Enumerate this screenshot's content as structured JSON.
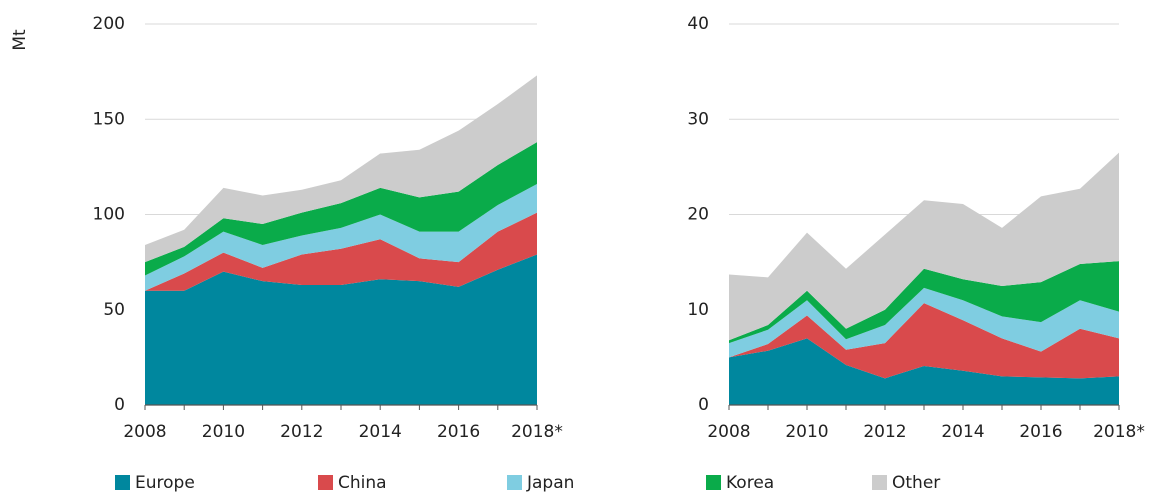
{
  "chart_data": [
    {
      "type": "stacked-area",
      "y_label": "Mt",
      "categories": [
        "2008",
        null,
        "2010",
        null,
        "2012",
        null,
        "2014",
        null,
        "2016",
        null,
        "2018*"
      ],
      "ylim": [
        0,
        200
      ],
      "yticks": [
        0,
        50,
        100,
        150,
        200
      ],
      "grid": true,
      "series": [
        {
          "name": "Europe",
          "color": "#00879e",
          "values": [
            60,
            60,
            70,
            65,
            63,
            63,
            66,
            65,
            62,
            71,
            79
          ]
        },
        {
          "name": "China",
          "color": "#d94a4c",
          "values": [
            0,
            9,
            10,
            7,
            16,
            19,
            21,
            12,
            13,
            20,
            22
          ]
        },
        {
          "name": "Japan",
          "color": "#7fcde1",
          "values": [
            8,
            9,
            11,
            12,
            10,
            11,
            13,
            14,
            16,
            14,
            15
          ]
        },
        {
          "name": "Korea",
          "color": "#0aab4a",
          "values": [
            7,
            5,
            7,
            11,
            12,
            13,
            14,
            18,
            21,
            21,
            22
          ]
        },
        {
          "name": "Other",
          "color": "#cccccc",
          "values": [
            9,
            9,
            16,
            15,
            12,
            12,
            18,
            25,
            32,
            32,
            35
          ]
        }
      ]
    },
    {
      "type": "stacked-area",
      "categories": [
        "2008",
        null,
        "2010",
        null,
        "2012",
        null,
        "2014",
        null,
        "2016",
        null,
        "2018*"
      ],
      "ylim": [
        0,
        40
      ],
      "yticks": [
        0,
        10,
        20,
        30,
        40
      ],
      "grid": true,
      "series": [
        {
          "name": "Europe",
          "color": "#00879e",
          "values": [
            5,
            5.7,
            7,
            4.2,
            2.8,
            4.1,
            3.6,
            3.0,
            2.9,
            2.8,
            3.0
          ]
        },
        {
          "name": "China",
          "color": "#d94a4c",
          "values": [
            0,
            0.7,
            2.4,
            1.6,
            3.7,
            6.6,
            5.3,
            4.0,
            2.7,
            5.2,
            4.0
          ]
        },
        {
          "name": "Japan",
          "color": "#7fcde1",
          "values": [
            1.5,
            1.5,
            1.6,
            1.1,
            1.9,
            1.6,
            2.1,
            2.3,
            3.1,
            3.0,
            2.8
          ]
        },
        {
          "name": "Korea",
          "color": "#0aab4a",
          "values": [
            0.3,
            0.5,
            1.0,
            1.1,
            1.6,
            2.0,
            2.2,
            3.2,
            4.2,
            3.8,
            5.3
          ]
        },
        {
          "name": "Other",
          "color": "#cccccc",
          "values": [
            6.9,
            5.0,
            6.1,
            6.3,
            7.9,
            7.2,
            7.9,
            6.1,
            9.0,
            7.9,
            11.4
          ]
        }
      ]
    }
  ]
}
